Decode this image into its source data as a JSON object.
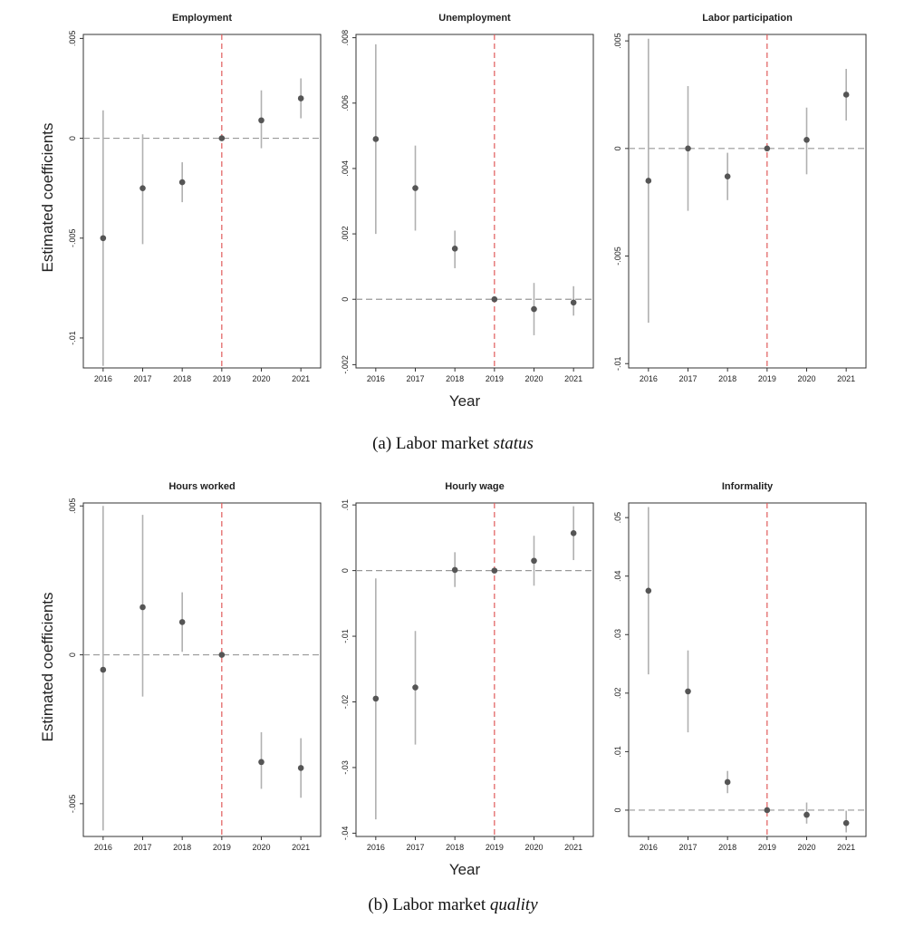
{
  "captions": {
    "a_prefix": "(a) Labor market ",
    "a_em": "status",
    "b_prefix": "(b) Labor market ",
    "b_em": "quality"
  },
  "axis_labels": {
    "ylabel": "Estimated coefficients",
    "xlabel": "Year"
  },
  "colors": {
    "point": "#555555",
    "ci": "#b0b0b0",
    "zero_line": "#999999",
    "ref_line": "#e05a5a"
  },
  "chart_data": [
    {
      "type": "scatter",
      "title": "Employment",
      "x": [
        "2016",
        "2017",
        "2018",
        "2019",
        "2020",
        "2021"
      ],
      "y": [
        -0.005,
        -0.0025,
        -0.0022,
        0,
        0.0009,
        0.002
      ],
      "ci_low": [
        -0.0114,
        -0.0053,
        -0.0032,
        0,
        -0.0005,
        0.001
      ],
      "ci_high": [
        0.0014,
        0.0002,
        -0.0012,
        0,
        0.0024,
        0.003
      ],
      "ylim": [
        -0.0115,
        0.0052
      ],
      "yticks": [
        0.005,
        0,
        -0.005,
        -0.01
      ],
      "yticklabels": [
        ".005",
        "0",
        "-.005",
        "-.01"
      ],
      "zero_line": 0,
      "reference_x": "2019"
    },
    {
      "type": "scatter",
      "title": "Unemployment",
      "x": [
        "2016",
        "2017",
        "2018",
        "2019",
        "2020",
        "2021"
      ],
      "y": [
        0.0049,
        0.0034,
        0.00155,
        0,
        -0.0003,
        -0.0001
      ],
      "ci_low": [
        0.002,
        0.0021,
        0.00095,
        0,
        -0.0011,
        -0.0005
      ],
      "ci_high": [
        0.0078,
        0.0047,
        0.0021,
        0,
        0.0005,
        0.0004
      ],
      "ylim": [
        -0.0021,
        0.0081
      ],
      "yticks": [
        0.008,
        0.006,
        0.004,
        0.002,
        0,
        -0.002
      ],
      "yticklabels": [
        ".008",
        ".006",
        ".004",
        ".002",
        "0",
        "-.002"
      ],
      "zero_line": 0,
      "reference_x": "2019"
    },
    {
      "type": "scatter",
      "title": "Labor participation",
      "x": [
        "2016",
        "2017",
        "2018",
        "2019",
        "2020",
        "2021"
      ],
      "y": [
        -0.0015,
        0,
        -0.0013,
        0,
        0.0004,
        0.0025
      ],
      "ci_low": [
        -0.0081,
        -0.0029,
        -0.0024,
        0,
        -0.0012,
        0.0013
      ],
      "ci_high": [
        0.0051,
        0.0029,
        -0.0002,
        0,
        0.0019,
        0.0037
      ],
      "ylim": [
        -0.0102,
        0.0053
      ],
      "yticks": [
        0.005,
        0,
        -0.005,
        -0.01
      ],
      "yticklabels": [
        ".005",
        "0",
        "-.005",
        "-.01"
      ],
      "zero_line": 0,
      "reference_x": "2019"
    },
    {
      "type": "scatter",
      "title": "Hours worked",
      "x": [
        "2016",
        "2017",
        "2018",
        "2019",
        "2020",
        "2021"
      ],
      "y": [
        -0.0005,
        0.0016,
        0.0011,
        0,
        -0.0036,
        -0.0038
      ],
      "ci_low": [
        -0.0059,
        -0.0014,
        0.0001,
        0,
        -0.0045,
        -0.0048
      ],
      "ci_high": [
        0.005,
        0.0047,
        0.0021,
        0,
        -0.0026,
        -0.0028
      ],
      "ylim": [
        -0.0061,
        0.0051
      ],
      "yticks": [
        0.005,
        0,
        -0.005
      ],
      "yticklabels": [
        ".005",
        "0",
        "-.005"
      ],
      "zero_line": 0,
      "reference_x": "2019"
    },
    {
      "type": "scatter",
      "title": "Hourly wage",
      "x": [
        "2016",
        "2017",
        "2018",
        "2019",
        "2020",
        "2021"
      ],
      "y": [
        -0.0195,
        -0.0178,
        0.0001,
        0,
        0.0015,
        0.0057
      ],
      "ci_low": [
        -0.0379,
        -0.0265,
        -0.0025,
        0,
        -0.0023,
        0.0016
      ],
      "ci_high": [
        -0.0012,
        -0.0092,
        0.0028,
        0,
        0.0053,
        0.0098
      ],
      "ylim": [
        -0.0405,
        0.0103
      ],
      "yticks": [
        0.01,
        0,
        -0.01,
        -0.02,
        -0.03,
        -0.04
      ],
      "yticklabels": [
        ".01",
        "0",
        "-.01",
        "-.02",
        "-.03",
        "-.04"
      ],
      "zero_line": 0,
      "reference_x": "2019"
    },
    {
      "type": "scatter",
      "title": "Informality",
      "x": [
        "2016",
        "2017",
        "2018",
        "2019",
        "2020",
        "2021"
      ],
      "y": [
        0.0375,
        0.0203,
        0.0048,
        0,
        -0.0008,
        -0.0022
      ],
      "ci_low": [
        0.0232,
        0.0133,
        0.0029,
        0,
        -0.0023,
        -0.0038
      ],
      "ci_high": [
        0.0518,
        0.0273,
        0.0067,
        0,
        0.0013,
        -0.0001
      ],
      "ylim": [
        -0.0045,
        0.0525
      ],
      "yticks": [
        0.05,
        0.04,
        0.03,
        0.02,
        0.01,
        0
      ],
      "yticklabels": [
        ".05",
        ".04",
        ".03",
        ".02",
        ".01",
        "0"
      ],
      "zero_line": 0,
      "reference_x": "2019"
    }
  ]
}
